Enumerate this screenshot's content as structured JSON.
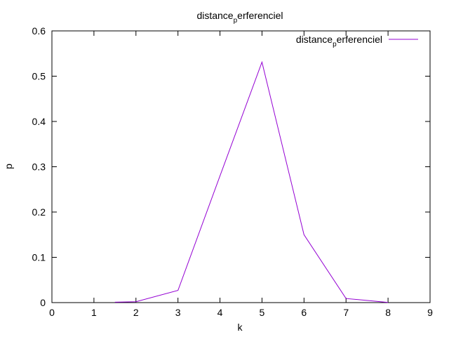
{
  "chart_data": {
    "type": "line",
    "title": {
      "main": "distance",
      "sub": "p",
      "rest": "erferenciel"
    },
    "xlabel": "k",
    "ylabel": "p",
    "xlim": [
      0,
      9
    ],
    "ylim": [
      0,
      0.6
    ],
    "xticks": [
      "0",
      "1",
      "2",
      "3",
      "4",
      "5",
      "6",
      "7",
      "8",
      "9"
    ],
    "yticks": [
      "0",
      "0.1",
      "0.2",
      "0.3",
      "0.4",
      "0.5",
      "0.6"
    ],
    "grid": false,
    "legend_position": "top-right",
    "series": [
      {
        "name": {
          "main": "distance",
          "sub": "p",
          "rest": "erferenciel"
        },
        "color": "#9400d3",
        "x": [
          1.5,
          2,
          3,
          4,
          5,
          6,
          7,
          8
        ],
        "y": [
          0.001,
          0.002,
          0.027,
          0.28,
          0.531,
          0.15,
          0.009,
          0.0005
        ]
      }
    ]
  }
}
